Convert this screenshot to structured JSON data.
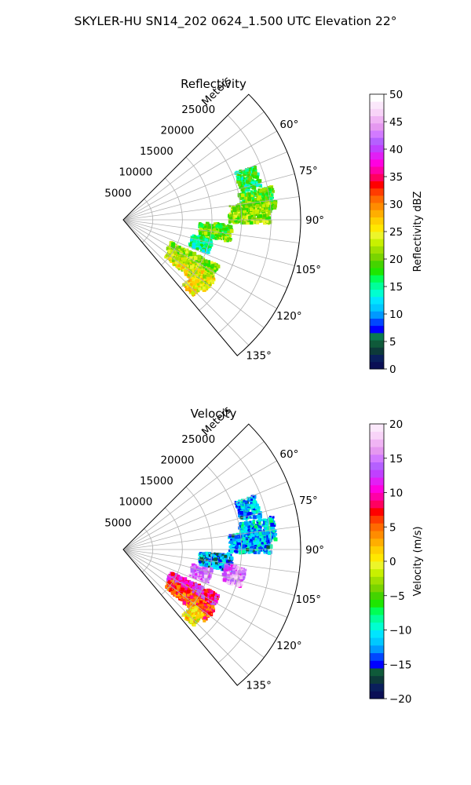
{
  "suptitle": "SKYLER-HU  SN14_202  0624_1.500 UTC Elevation 22°",
  "chart_data": [
    {
      "type": "heatmap",
      "projection": "polar-sector",
      "title": "Reflectivity",
      "radial_label": "Meters",
      "radial_ticks": [
        "5000",
        "10000",
        "15000",
        "20000",
        "25000"
      ],
      "radial_tick_values": [
        5000,
        10000,
        15000,
        20000,
        25000
      ],
      "rlim": [
        0,
        30000
      ],
      "azimuth_ticks": [
        "60°",
        "75°",
        "90°",
        "105°",
        "120°",
        "135°"
      ],
      "azimuth_tick_values": [
        60,
        75,
        90,
        105,
        120,
        135
      ],
      "azimuth_range": [
        45,
        140
      ],
      "grid": true,
      "colorbar": {
        "label": "Reflectivity dBZ",
        "vmin": 0,
        "vmax": 50,
        "ticks": [
          "0",
          "5",
          "10",
          "15",
          "20",
          "25",
          "30",
          "35",
          "40",
          "45",
          "50"
        ],
        "tick_values": [
          0,
          5,
          10,
          15,
          20,
          25,
          30,
          35,
          40,
          45,
          50
        ],
        "colors": [
          "#0b0f55",
          "#0a1f5c",
          "#0d3a3a",
          "#0f5a3a",
          "#0a7a50",
          "#0000ff",
          "#0047ff",
          "#0099ff",
          "#00c8ff",
          "#00e5ff",
          "#00ffd0",
          "#00ff9a",
          "#00ff55",
          "#1ee600",
          "#44d400",
          "#7ad400",
          "#a0e000",
          "#c8f000",
          "#ecf52a",
          "#ffe800",
          "#ffcf00",
          "#ffae00",
          "#ff8c00",
          "#ff6a00",
          "#ff3c00",
          "#ff0000",
          "#ff0060",
          "#ff00a6",
          "#ff00e0",
          "#e21ff5",
          "#c040ff",
          "#b560ff",
          "#d27aff",
          "#e598f0",
          "#f0b4f4",
          "#f8d4f8",
          "#fbe8fb",
          "#ffffff"
        ]
      },
      "data_regions": [
        {
          "az": 72,
          "r0": 20500,
          "r1": 24000,
          "value": 17
        },
        {
          "az": 82,
          "r0": 20000,
          "r1": 26000,
          "value": 19
        },
        {
          "az": 87,
          "r0": 18000,
          "r1": 25000,
          "value": 21
        },
        {
          "az": 97,
          "r0": 13000,
          "r1": 18500,
          "value": 20
        },
        {
          "az": 107,
          "r0": 12000,
          "r1": 15500,
          "value": 16
        },
        {
          "az": 120,
          "r0": 9000,
          "r1": 18000,
          "value": 21
        },
        {
          "az": 127,
          "r0": 9500,
          "r1": 18500,
          "value": 24
        },
        {
          "az": 133,
          "r0": 15000,
          "r1": 17500,
          "value": 26
        }
      ]
    },
    {
      "type": "heatmap",
      "projection": "polar-sector",
      "title": "Velocity",
      "radial_label": "Meters",
      "radial_ticks": [
        "5000",
        "10000",
        "15000",
        "20000",
        "25000"
      ],
      "radial_tick_values": [
        5000,
        10000,
        15000,
        20000,
        25000
      ],
      "rlim": [
        0,
        30000
      ],
      "azimuth_ticks": [
        "60°",
        "75°",
        "90°",
        "105°",
        "120°",
        "135°"
      ],
      "azimuth_tick_values": [
        60,
        75,
        90,
        105,
        120,
        135
      ],
      "azimuth_range": [
        45,
        140
      ],
      "grid": true,
      "colorbar": {
        "label": "Velocity (m/s)",
        "vmin": -20,
        "vmax": 20,
        "ticks": [
          "−20",
          "−15",
          "−10",
          "−5",
          "0",
          "5",
          "10",
          "15",
          "20"
        ],
        "tick_values": [
          -20,
          -15,
          -10,
          -5,
          0,
          5,
          10,
          15,
          20
        ],
        "colors": [
          "#0b0f55",
          "#0a1f5c",
          "#0d3a3a",
          "#0f5a3a",
          "#0000ff",
          "#0047ff",
          "#0099ff",
          "#00c8ff",
          "#00e5ff",
          "#00ffd0",
          "#00ff9a",
          "#00ff55",
          "#1ee600",
          "#44d400",
          "#7ad400",
          "#a0e000",
          "#c8f000",
          "#ecf52a",
          "#ffe800",
          "#ffcf00",
          "#ffae00",
          "#ff8c00",
          "#ff6a00",
          "#ff3c00",
          "#ff0000",
          "#ff0060",
          "#ff00a6",
          "#ff00e0",
          "#e21ff5",
          "#c040ff",
          "#b560ff",
          "#d27aff",
          "#e598f0",
          "#f0b4f4",
          "#f8d4f8",
          "#fbe8fb"
        ]
      },
      "data_regions": [
        {
          "az": 72,
          "r0": 20500,
          "r1": 24000,
          "value": -12
        },
        {
          "az": 82,
          "r0": 20000,
          "r1": 26000,
          "value": -11
        },
        {
          "az": 87,
          "r0": 18000,
          "r1": 25000,
          "value": -12
        },
        {
          "az": 97,
          "r0": 13000,
          "r1": 18500,
          "value": -13
        },
        {
          "az": 103,
          "r0": 17500,
          "r1": 21000,
          "value": 15
        },
        {
          "az": 107,
          "r0": 12000,
          "r1": 15500,
          "value": 15
        },
        {
          "az": 120,
          "r0": 9000,
          "r1": 18000,
          "value": 10
        },
        {
          "az": 127,
          "r0": 9500,
          "r1": 18500,
          "value": 6
        },
        {
          "az": 133,
          "r0": 15000,
          "r1": 17500,
          "value": 1
        }
      ]
    }
  ]
}
